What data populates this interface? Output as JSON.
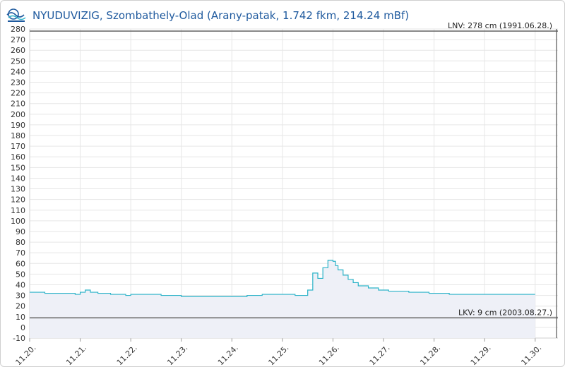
{
  "header": {
    "title": "NYUDUVIZIG, Szombathely-Olad (Arany-patak, 1.742 fkm, 214.24 mBf)"
  },
  "colors": {
    "series": "#2bb3c8",
    "fill": "#eef0f7",
    "grid": "#e6e6e6",
    "ref_line": "#6e6e6e",
    "title": "#1f5a9e"
  },
  "chart_data": {
    "type": "line",
    "title": "NYUDUVIZIG, Szombathely-Olad (Arany-patak, 1.742 fkm, 214.24 mBf)",
    "xlabel": "",
    "ylabel": "",
    "ylim": [
      -10,
      280
    ],
    "yticks": [
      -10,
      0,
      10,
      20,
      30,
      40,
      50,
      60,
      70,
      80,
      90,
      100,
      110,
      120,
      130,
      140,
      150,
      160,
      170,
      180,
      190,
      200,
      210,
      220,
      230,
      240,
      250,
      260,
      270,
      280
    ],
    "xlim": [
      0,
      10.45
    ],
    "xticks": [
      {
        "value": 0,
        "label": "11.20."
      },
      {
        "value": 1,
        "label": "11.21."
      },
      {
        "value": 2,
        "label": "11.22."
      },
      {
        "value": 3,
        "label": "11.23."
      },
      {
        "value": 4,
        "label": "11.24."
      },
      {
        "value": 5,
        "label": "11.25."
      },
      {
        "value": 6,
        "label": "11.26."
      },
      {
        "value": 7,
        "label": "11.27."
      },
      {
        "value": 8,
        "label": "11.28."
      },
      {
        "value": 9,
        "label": "11.29."
      },
      {
        "value": 10,
        "label": "11.30."
      }
    ],
    "grid": true,
    "step": true,
    "series": [
      {
        "x": [
          0,
          0.3,
          0.6,
          0.9,
          1.0,
          1.1,
          1.2,
          1.35,
          1.6,
          1.9,
          2.0,
          2.2,
          2.6,
          3.0,
          3.3,
          3.7,
          4.0,
          4.3,
          4.6,
          4.9,
          5.1,
          5.15,
          5.25,
          5.35,
          5.5,
          5.6,
          5.7,
          5.8,
          5.9,
          6.0,
          6.05,
          6.1,
          6.2,
          6.3,
          6.4,
          6.5,
          6.7,
          6.9,
          7.1,
          7.5,
          7.9,
          8.3,
          8.7,
          9.1,
          9.5,
          9.9,
          10.0
        ],
        "y": [
          33,
          32,
          32,
          31,
          33,
          35,
          33,
          32,
          31,
          30,
          31,
          31,
          30,
          29,
          29,
          29,
          29,
          30,
          31,
          31,
          31,
          31,
          30,
          30,
          35,
          51,
          46,
          56,
          63,
          62,
          58,
          54,
          49,
          45,
          42,
          39,
          37,
          35,
          34,
          33,
          32,
          31,
          31,
          31,
          31,
          31,
          31
        ]
      }
    ],
    "annotations": [
      {
        "y": 278,
        "label": "LNV: 278 cm (1991.06.28.)"
      },
      {
        "y": 9,
        "label": "LKV: 9 cm (2003.08.27.)"
      }
    ]
  }
}
